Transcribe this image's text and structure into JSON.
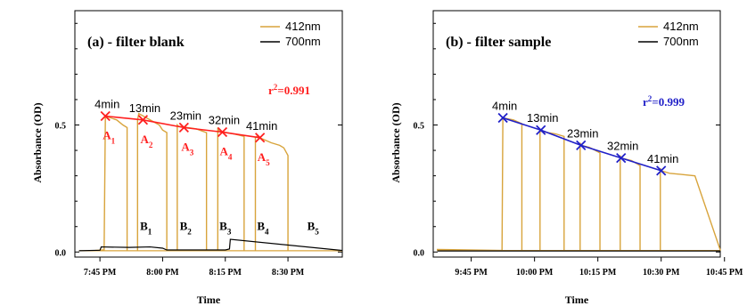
{
  "chart_data": [
    {
      "type": "line",
      "title": "(a) - filter blank",
      "xlabel": "Time",
      "ylabel": "Absorbance (OD)",
      "x_ticks": [
        "7:45 PM",
        "8:00 PM",
        "8:15 PM",
        "8:30 PM"
      ],
      "x_tick_minutes": [
        0,
        15,
        30,
        45
      ],
      "xlim_minutes": [
        -6,
        58
      ],
      "y_ticks": [
        0.0,
        0.5
      ],
      "y_tick_labels": [
        "0.0",
        "0.5"
      ],
      "ylim": [
        -0.02,
        0.95
      ],
      "legend": {
        "position": "top-right",
        "entries": [
          "412nm",
          "700nm"
        ]
      },
      "colors": {
        "412nm": "#d8a43c",
        "700nm": "#000000",
        "fit": "#ff2020",
        "label": "#ff2020"
      },
      "r2_label": "r",
      "r2_sup": "2",
      "r2_value": "=0.991",
      "series": [
        {
          "name": "412nm",
          "segments": [
            {
              "x": [
                -1,
                1,
                1.3,
                4,
                5.5,
                6.5
              ],
              "y": [
                0.006,
                0.008,
                0.535,
                0.52,
                0.5,
                0.49
              ]
            },
            {
              "x": [
                9,
                9.3,
                12,
                14.2,
                15,
                16
              ],
              "y": [
                0.52,
                0.545,
                0.52,
                0.5,
                0.48,
                0.47
              ]
            },
            {
              "x": [
                18.5,
                18.8,
                23,
                25.5
              ],
              "y": [
                0.5,
                0.495,
                0.485,
                0.47
              ]
            },
            {
              "x": [
                28.2,
                28.5,
                32,
                34.5
              ],
              "y": [
                0.49,
                0.475,
                0.465,
                0.455
              ]
            },
            {
              "x": [
                37.2,
                37.5,
                41,
                43,
                44,
                45
              ],
              "y": [
                0.45,
                0.455,
                0.43,
                0.42,
                0.41,
                0.38
              ]
            }
          ],
          "baseline": {
            "x": [
              -5,
              58
            ],
            "y": [
              0.005,
              0.005
            ]
          }
        },
        {
          "name": "700nm",
          "x": [
            -5,
            0,
            0.3,
            7,
            12,
            15,
            16,
            30,
            31,
            31.2,
            58
          ],
          "y": [
            0.005,
            0.007,
            0.02,
            0.018,
            0.02,
            0.015,
            0.008,
            0.008,
            0.012,
            0.05,
            0.006
          ]
        }
      ],
      "point_labels": [
        {
          "text": "4min",
          "x": 1.3,
          "y": 0.535
        },
        {
          "text": "13min",
          "x": 10.3,
          "y": 0.52
        },
        {
          "text": "23min",
          "x": 20.1,
          "y": 0.49
        },
        {
          "text": "32min",
          "x": 29.3,
          "y": 0.472
        },
        {
          "text": "41min",
          "x": 38.3,
          "y": 0.45
        }
      ],
      "A_labels": [
        {
          "letter": "A",
          "sub": "1",
          "x": 1.3
        },
        {
          "letter": "A",
          "sub": "2",
          "x": 10.3
        },
        {
          "letter": "A",
          "sub": "3",
          "x": 20.1
        },
        {
          "letter": "A",
          "sub": "4",
          "x": 29.3
        },
        {
          "letter": "A",
          "sub": "5",
          "x": 38.3
        }
      ],
      "B_labels": [
        {
          "letter": "B",
          "sub": "1",
          "x": 11
        },
        {
          "letter": "B",
          "sub": "2",
          "x": 20.5
        },
        {
          "letter": "B",
          "sub": "3",
          "x": 30
        },
        {
          "letter": "B",
          "sub": "4",
          "x": 39
        },
        {
          "letter": "B",
          "sub": "5",
          "x": 51
        }
      ]
    },
    {
      "type": "line",
      "title": "(b) - filter sample",
      "xlabel": "Time",
      "ylabel": "Absorbance (OD)",
      "x_ticks": [
        "9:45 PM",
        "10:00 PM",
        "10:15 PM",
        "10:30 PM",
        "10:45 PM"
      ],
      "x_tick_minutes": [
        0,
        15,
        30,
        45,
        60
      ],
      "xlim_minutes": [
        -9,
        59
      ],
      "y_ticks": [
        0.0,
        0.5
      ],
      "y_tick_labels": [
        "0.0",
        "0.5"
      ],
      "ylim": [
        -0.02,
        0.95
      ],
      "legend": {
        "position": "top-right",
        "entries": [
          "412nm",
          "700nm"
        ]
      },
      "colors": {
        "412nm": "#d8a43c",
        "700nm": "#000000",
        "fit": "#2020c8",
        "label": "#2020c8"
      },
      "r2_label": "r",
      "r2_sup": "2",
      "r2_value": "=0.999",
      "series": [
        {
          "name": "412nm",
          "segments": [
            {
              "x": [
                -8,
                7.3,
                7.5,
                10,
                12
              ],
              "y": [
                0.01,
                0.006,
                0.528,
                0.52,
                0.505
              ]
            },
            {
              "x": [
                16.3,
                16.5,
                20,
                22
              ],
              "y": [
                0.48,
                0.475,
                0.465,
                0.455
              ]
            },
            {
              "x": [
                25.8,
                26,
                28,
                30.5
              ],
              "y": [
                0.43,
                0.42,
                0.412,
                0.39
              ]
            },
            {
              "x": [
                35.3,
                35.5,
                38,
                40
              ],
              "y": [
                0.38,
                0.37,
                0.36,
                0.34
              ]
            },
            {
              "x": [
                44.8,
                45,
                47,
                50,
                53,
                59
              ],
              "y": [
                0.33,
                0.32,
                0.31,
                0.305,
                0.3,
                0.008
              ]
            }
          ],
          "baseline": {
            "x": [
              -8,
              59
            ],
            "y": [
              0.006,
              0.006
            ]
          }
        },
        {
          "name": "700nm",
          "x": [
            -8,
            59
          ],
          "y": [
            0.004,
            0.004
          ]
        }
      ],
      "point_labels": [
        {
          "text": "4min",
          "x": 7.5,
          "y": 0.528
        },
        {
          "text": "13min",
          "x": 16.5,
          "y": 0.48
        },
        {
          "text": "23min",
          "x": 26,
          "y": 0.42
        },
        {
          "text": "32min",
          "x": 35.5,
          "y": 0.37
        },
        {
          "text": "41min",
          "x": 45,
          "y": 0.32
        }
      ]
    }
  ]
}
